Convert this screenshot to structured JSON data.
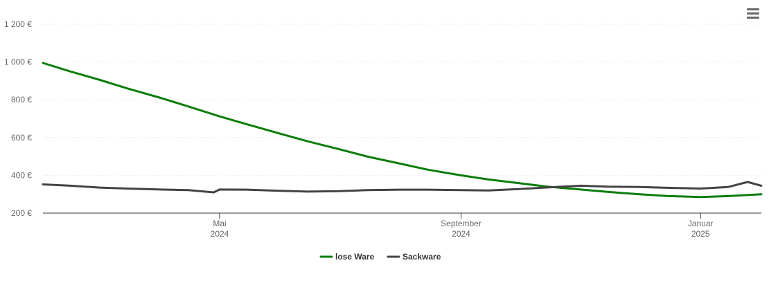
{
  "menu": {
    "icon": "hamburger-menu-icon"
  },
  "chart_data": {
    "type": "line",
    "title": "",
    "xlabel": "",
    "ylabel": "",
    "ylim": [
      200,
      1200
    ],
    "yticks": [
      {
        "value": 200,
        "label": "200 €"
      },
      {
        "value": 400,
        "label": "400 €"
      },
      {
        "value": 600,
        "label": "600 €"
      },
      {
        "value": 800,
        "label": "800 €"
      },
      {
        "value": 1000,
        "label": "1 000 €"
      },
      {
        "value": 1200,
        "label": "1 200 €"
      }
    ],
    "xlim": [
      "2024-02-01",
      "2025-02-01"
    ],
    "xticks": [
      {
        "value": "2024-05-01",
        "month": "Mai",
        "year": "2024"
      },
      {
        "value": "2024-09-01",
        "month": "September",
        "year": "2024"
      },
      {
        "value": "2025-01-01",
        "month": "Januar",
        "year": "2025"
      }
    ],
    "grid": true,
    "legend_position": "bottom-center",
    "series": [
      {
        "name": "lose Ware",
        "color": "#0a7d0a",
        "points": [
          [
            "2024-02-01",
            995
          ],
          [
            "2024-02-15",
            950
          ],
          [
            "2024-03-01",
            905
          ],
          [
            "2024-03-15",
            860
          ],
          [
            "2024-04-01",
            810
          ],
          [
            "2024-04-15",
            765
          ],
          [
            "2024-05-01",
            712
          ],
          [
            "2024-05-15",
            670
          ],
          [
            "2024-06-01",
            620
          ],
          [
            "2024-06-15",
            580
          ],
          [
            "2024-07-01",
            538
          ],
          [
            "2024-07-15",
            500
          ],
          [
            "2024-08-01",
            462
          ],
          [
            "2024-08-15",
            430
          ],
          [
            "2024-09-01",
            400
          ],
          [
            "2024-09-15",
            378
          ],
          [
            "2024-10-01",
            358
          ],
          [
            "2024-10-15",
            340
          ],
          [
            "2024-11-01",
            325
          ],
          [
            "2024-11-15",
            312
          ],
          [
            "2024-12-01",
            300
          ],
          [
            "2024-12-15",
            291
          ],
          [
            "2025-01-01",
            285
          ],
          [
            "2025-01-15",
            290
          ],
          [
            "2025-02-01",
            300
          ]
        ]
      },
      {
        "name": "Sackware",
        "color": "#434343",
        "points": [
          [
            "2024-02-01",
            352
          ],
          [
            "2024-02-15",
            345
          ],
          [
            "2024-03-01",
            335
          ],
          [
            "2024-03-15",
            330
          ],
          [
            "2024-04-01",
            325
          ],
          [
            "2024-04-15",
            322
          ],
          [
            "2024-04-28",
            310
          ],
          [
            "2024-05-01",
            325
          ],
          [
            "2024-05-15",
            324
          ],
          [
            "2024-06-01",
            318
          ],
          [
            "2024-06-15",
            314
          ],
          [
            "2024-07-01",
            316
          ],
          [
            "2024-07-15",
            322
          ],
          [
            "2024-08-01",
            324
          ],
          [
            "2024-08-15",
            324
          ],
          [
            "2024-09-01",
            322
          ],
          [
            "2024-09-15",
            320
          ],
          [
            "2024-10-01",
            328
          ],
          [
            "2024-10-15",
            336
          ],
          [
            "2024-11-01",
            345
          ],
          [
            "2024-11-15",
            340
          ],
          [
            "2024-12-01",
            338
          ],
          [
            "2024-12-15",
            334
          ],
          [
            "2025-01-01",
            330
          ],
          [
            "2025-01-15",
            338
          ],
          [
            "2025-01-25",
            365
          ],
          [
            "2025-02-01",
            345
          ]
        ]
      }
    ]
  }
}
